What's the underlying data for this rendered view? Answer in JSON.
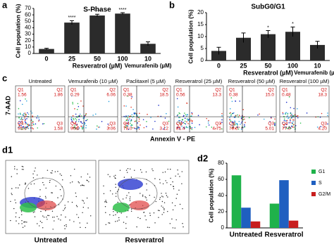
{
  "panel_labels": [
    "a",
    "b",
    "c",
    "d1",
    "d2"
  ],
  "chart_data": [
    {
      "type": "bar",
      "title": "S-Phase",
      "ylabel": "Cell population (%)",
      "xlabel": "Resveratrol (µM)",
      "xlabel2": "Vemurafenib (µM)",
      "categories": [
        "0",
        "25",
        "50",
        "100",
        "10"
      ],
      "values": [
        7,
        48,
        59,
        62,
        15
      ],
      "errors": [
        1,
        3,
        2,
        1.5,
        3
      ],
      "stars": [
        null,
        "****",
        "****",
        "****",
        null
      ],
      "color": "#2b2b2b",
      "ylim": [
        0,
        70
      ],
      "yticks": [
        0,
        10,
        20,
        30,
        40,
        50,
        60,
        70
      ]
    },
    {
      "type": "bar",
      "title": "SubG0/G1",
      "ylabel": "Cell population (%)",
      "xlabel": "Resveratrol (µM)",
      "xlabel2": "Vemurafenib (µM)",
      "categories": [
        "0",
        "25",
        "50",
        "100",
        "10"
      ],
      "values": [
        4,
        9.5,
        11,
        12,
        6.5
      ],
      "errors": [
        1.5,
        2,
        1.5,
        2,
        1.5
      ],
      "stars": [
        null,
        null,
        "*",
        "*",
        null
      ],
      "color": "#2b2b2b",
      "ylim": [
        0,
        20
      ],
      "yticks": [
        0,
        5,
        10,
        15,
        20
      ]
    },
    {
      "type": "grouped-bar",
      "ylabel": "Cell population (%)",
      "categories": [
        "Untreated",
        "Resveratrol"
      ],
      "series": [
        {
          "name": "G1",
          "color": "#1fb24a",
          "values": [
            65,
            30
          ]
        },
        {
          "name": "S",
          "color": "#1f5fc0",
          "values": [
            25,
            59
          ]
        },
        {
          "name": "G2/M",
          "color": "#c81e1e",
          "values": [
            8,
            9
          ]
        }
      ],
      "ylim": [
        0,
        80
      ],
      "yticks": [
        0,
        20,
        40,
        60,
        80
      ]
    }
  ],
  "flow": {
    "ylabel": "7-AAD",
    "xlabel": "Annexin V - PE",
    "plots": [
      {
        "title": "Untreated",
        "quads": [
          {
            "label": "Q1",
            "value": "1.56"
          },
          {
            "label": "Q2",
            "value": "1.86"
          },
          {
            "label": "Q4",
            "value": "95.0"
          },
          {
            "label": "Q3",
            "value": "1.58"
          }
        ]
      },
      {
        "title": "Vemurafenib (10 µM)",
        "quads": [
          {
            "label": "Q1",
            "value": "0.29"
          },
          {
            "label": "Q2",
            "value": "6.06"
          },
          {
            "label": "Q4",
            "value": "90.6"
          },
          {
            "label": "Q3",
            "value": "3.06"
          }
        ]
      },
      {
        "title": "Paclitaxel (5 µM)",
        "quads": [
          {
            "label": "Q1",
            "value": "0.38"
          },
          {
            "label": "Q2",
            "value": "18.5"
          },
          {
            "label": "Q4",
            "value": "78.0"
          },
          {
            "label": "Q3",
            "value": "3.12"
          }
        ]
      },
      {
        "title": "Resveratrol (25 µM)",
        "quads": [
          {
            "label": "Q1",
            "value": "0.56"
          },
          {
            "label": "Q2",
            "value": "13.3"
          },
          {
            "label": "Q4",
            "value": "81.4"
          },
          {
            "label": "Q3",
            "value": "4.75"
          }
        ]
      },
      {
        "title": "Resveratrol (50 µM)",
        "quads": [
          {
            "label": "Q1",
            "value": "0.38"
          },
          {
            "label": "Q2",
            "value": "15.0"
          },
          {
            "label": "Q4",
            "value": "79.6"
          },
          {
            "label": "Q3",
            "value": "5.01"
          }
        ]
      },
      {
        "title": "Resveratrol (100 µM)",
        "quads": [
          {
            "label": "Q1",
            "value": "0.48"
          },
          {
            "label": "Q2",
            "value": "18.3"
          },
          {
            "label": "Q4",
            "value": "77.0"
          },
          {
            "label": "Q3",
            "value": "4.20"
          }
        ]
      }
    ]
  },
  "histograms": {
    "labels": [
      "Untreated",
      "Resveratrol"
    ]
  }
}
